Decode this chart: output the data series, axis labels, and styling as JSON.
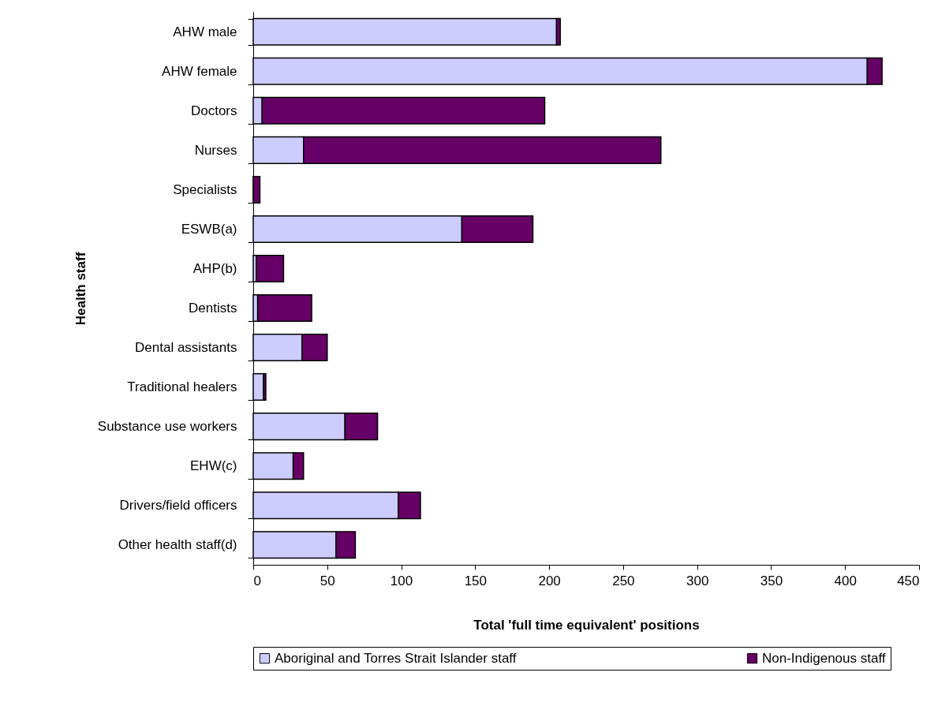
{
  "chart_data": {
    "type": "bar",
    "orientation": "horizontal",
    "stacked": true,
    "xlabel": "Total 'full time equivalent' positions",
    "ylabel": "Health staff",
    "categories": [
      "AHW male",
      "AHW female",
      "Doctors",
      "Nurses",
      "Specialists",
      "ESWB(a)",
      "AHP(b)",
      "Dentists",
      "Dental assistants",
      "Traditional healers",
      "Substance use workers",
      "EHW(c)",
      "Drivers/field officers",
      "Other health staff(d)"
    ],
    "series": [
      {
        "name": "Aboriginal and Torres Strait Islander staff",
        "color": "#ccccff",
        "values": [
          205,
          415,
          6,
          34,
          0,
          141,
          2,
          3,
          33,
          7,
          62,
          27,
          98,
          56
        ]
      },
      {
        "name": "Non-Indigenous staff",
        "color": "#660066",
        "values": [
          2.5,
          10,
          191,
          241.5,
          4.5,
          48,
          18.5,
          36.5,
          17,
          1.5,
          22,
          7,
          15,
          13
        ]
      }
    ],
    "xlim": [
      0,
      450
    ],
    "xticks": [
      0,
      50,
      100,
      150,
      200,
      250,
      300,
      350,
      400,
      450
    ],
    "legend": "bottom"
  }
}
